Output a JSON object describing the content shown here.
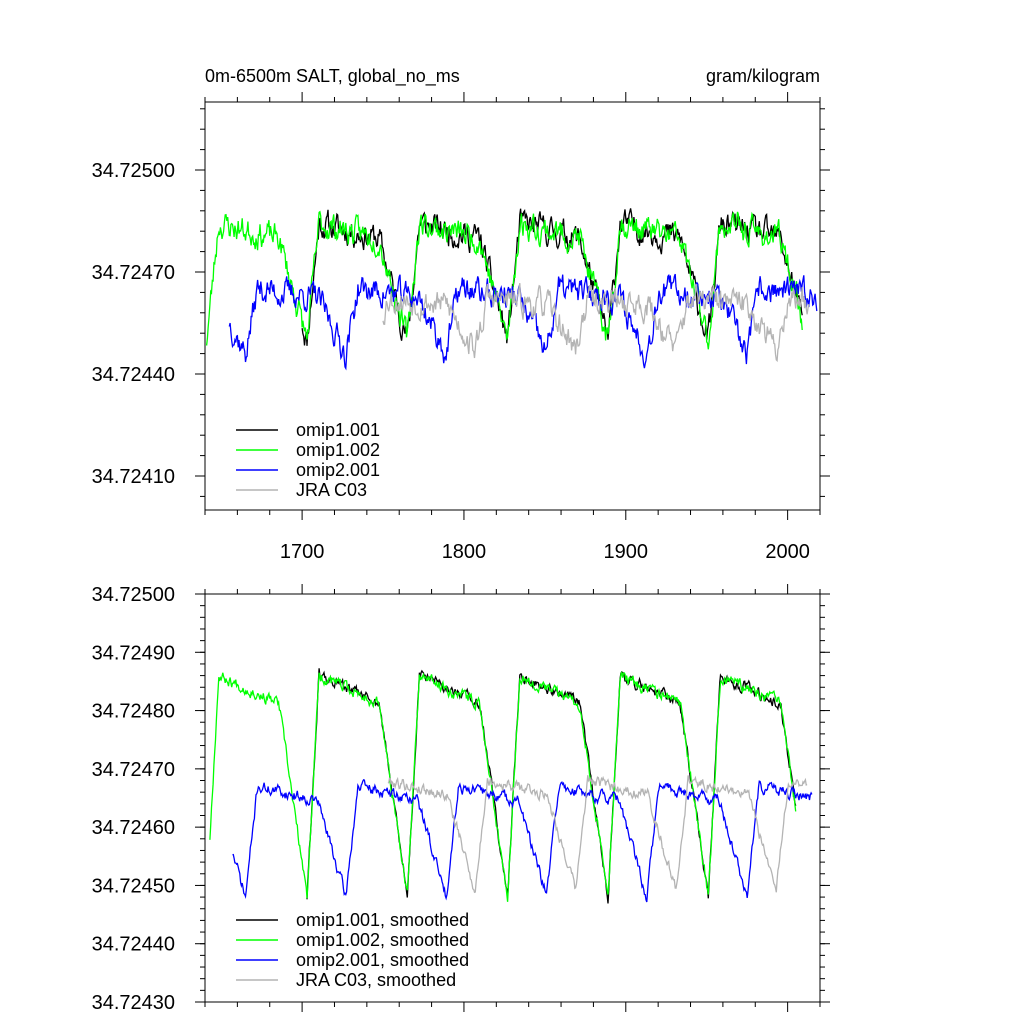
{
  "chart_data": [
    {
      "type": "line",
      "title_left": "0m-6500m SALT, global_no_ms",
      "title_right": "gram/kilogram",
      "xlabel": "",
      "ylabel": "",
      "xlim": [
        1640,
        2020
      ],
      "ylim": [
        34.724,
        34.7252
      ],
      "xticks": [
        1700,
        1800,
        1900,
        2000
      ],
      "xtick_labels": [
        "1700",
        "1800",
        "1900",
        "2000"
      ],
      "yticks": [
        34.7241,
        34.7244,
        34.7247,
        34.725
      ],
      "ytick_labels": [
        "34.72410",
        "34.72440",
        "34.72470",
        "34.72500"
      ],
      "legend_position": "bottom-left",
      "series": [
        {
          "name": "omip1.001",
          "color": "#000000",
          "x_start": 1700,
          "x_end": 2009,
          "base": 34.72468,
          "amp": 0.00018,
          "noise": 8e-05,
          "seed": 11
        },
        {
          "name": "omip1.002",
          "color": "#00ff00",
          "x_start": 1641,
          "x_end": 2009,
          "base": 34.72468,
          "amp": 0.00018,
          "noise": 8e-05,
          "seed": 23
        },
        {
          "name": "omip2.001",
          "color": "#0000ff",
          "x_start": 1655,
          "x_end": 2018,
          "base": 34.72456,
          "amp": 0.0001,
          "noise": 8e-05,
          "seed": 37
        },
        {
          "name": "JRA C03",
          "color": "#b4b4b4",
          "x_start": 1750,
          "x_end": 2013,
          "base": 34.72455,
          "amp": 8e-05,
          "noise": 8e-05,
          "seed": 53
        }
      ]
    },
    {
      "type": "line",
      "title_left": "",
      "title_right": "",
      "xlabel": "",
      "ylabel": "",
      "xlim": [
        1640,
        2020
      ],
      "ylim": [
        34.7243,
        34.725
      ],
      "xticks": [
        1700,
        1800,
        1900,
        2000
      ],
      "xtick_labels": [],
      "yticks": [
        34.7243,
        34.7244,
        34.7245,
        34.7246,
        34.7247,
        34.7248,
        34.7249,
        34.725
      ],
      "ytick_labels": [
        "34.72430",
        "34.72440",
        "34.72450",
        "34.72460",
        "34.72470",
        "34.72480",
        "34.72490",
        "34.72500"
      ],
      "legend_position": "bottom-left",
      "series": [
        {
          "name": "omip1.001, smoothed",
          "color": "#000000",
          "x_start": 1703,
          "x_end": 2005,
          "base": 34.72468,
          "amp": 0.0002,
          "noise": 2e-05,
          "seed": 61
        },
        {
          "name": "omip1.002, smoothed",
          "color": "#00ff00",
          "x_start": 1643,
          "x_end": 2005,
          "base": 34.72468,
          "amp": 0.0002,
          "noise": 2e-05,
          "seed": 67
        },
        {
          "name": "omip2.001, smoothed",
          "color": "#0000ff",
          "x_start": 1657,
          "x_end": 2015,
          "base": 34.72458,
          "amp": 0.0001,
          "noise": 2e-05,
          "seed": 71
        },
        {
          "name": "JRA C03, smoothed",
          "color": "#b4b4b4",
          "x_start": 1753,
          "x_end": 2012,
          "base": 34.72459,
          "amp": 0.0001,
          "noise": 2e-05,
          "seed": 79
        }
      ]
    }
  ]
}
